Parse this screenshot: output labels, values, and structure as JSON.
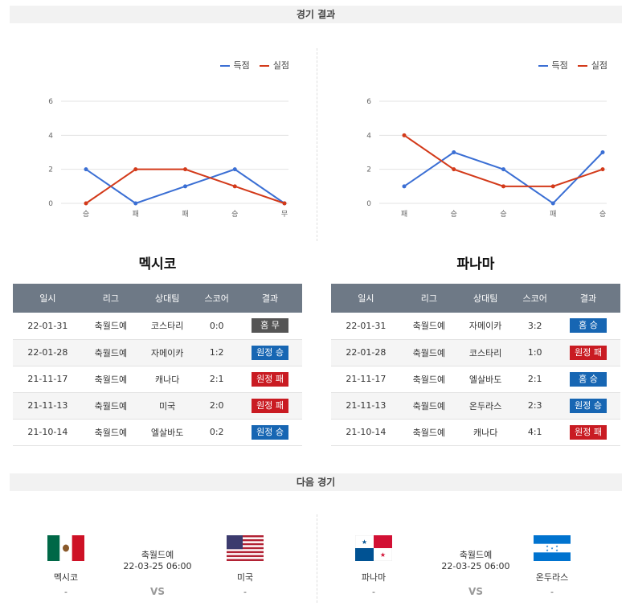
{
  "sections": {
    "results_title": "경기 결과",
    "next_title": "다음 경기"
  },
  "legend": {
    "scored": "득점",
    "conceded": "실점",
    "scored_color": "#3b6fd4",
    "conceded_color": "#d33a1a"
  },
  "chart_data": [
    {
      "type": "line",
      "categories": [
        "승",
        "패",
        "패",
        "승",
        "무"
      ],
      "ylim": [
        0,
        6
      ],
      "yticks": [
        "0",
        "2",
        "4",
        "6"
      ],
      "series": [
        {
          "name": "득점",
          "values": [
            2,
            0,
            1,
            2,
            0
          ]
        },
        {
          "name": "실점",
          "values": [
            0,
            2,
            2,
            1,
            0
          ]
        }
      ]
    },
    {
      "type": "line",
      "categories": [
        "패",
        "승",
        "승",
        "패",
        "승"
      ],
      "ylim": [
        0,
        6
      ],
      "yticks": [
        "0",
        "2",
        "4",
        "6"
      ],
      "series": [
        {
          "name": "득점",
          "values": [
            1,
            3,
            2,
            0,
            3
          ]
        },
        {
          "name": "실점",
          "values": [
            4,
            2,
            1,
            1,
            2
          ]
        }
      ]
    }
  ],
  "headers": [
    "일시",
    "리그",
    "상대팀",
    "스코어",
    "결과"
  ],
  "left": {
    "team": "멕시코",
    "rows": [
      {
        "date": "22-01-31",
        "league": "축월드예",
        "opp": "코스타리",
        "score": "0:0",
        "result": "홈 무",
        "kind": "b-draw"
      },
      {
        "date": "22-01-28",
        "league": "축월드예",
        "opp": "자메이카",
        "score": "1:2",
        "result": "원정 승",
        "kind": "b-away-w"
      },
      {
        "date": "21-11-17",
        "league": "축월드예",
        "opp": "캐나다",
        "score": "2:1",
        "result": "원정 패",
        "kind": "b-away-l"
      },
      {
        "date": "21-11-13",
        "league": "축월드예",
        "opp": "미국",
        "score": "2:0",
        "result": "원정 패",
        "kind": "b-away-l"
      },
      {
        "date": "21-10-14",
        "league": "축월드예",
        "opp": "엘살바도",
        "score": "0:2",
        "result": "원정 승",
        "kind": "b-away-w"
      }
    ]
  },
  "right": {
    "team": "파나마",
    "rows": [
      {
        "date": "22-01-31",
        "league": "축월드예",
        "opp": "자메이카",
        "score": "3:2",
        "result": "홈 승",
        "kind": "b-home-w"
      },
      {
        "date": "22-01-28",
        "league": "축월드예",
        "opp": "코스타리",
        "score": "1:0",
        "result": "원정 패",
        "kind": "b-away-l"
      },
      {
        "date": "21-11-17",
        "league": "축월드예",
        "opp": "엘살바도",
        "score": "2:1",
        "result": "홈 승",
        "kind": "b-home-w"
      },
      {
        "date": "21-11-13",
        "league": "축월드예",
        "opp": "온두라스",
        "score": "2:3",
        "result": "원정 승",
        "kind": "b-away-w"
      },
      {
        "date": "21-10-14",
        "league": "축월드예",
        "opp": "캐나다",
        "score": "4:1",
        "result": "원정 패",
        "kind": "b-away-l"
      }
    ]
  },
  "next": [
    {
      "home": "멕시코",
      "home_flag": "mexico-flag",
      "away": "미국",
      "away_flag": "usa-flag",
      "league": "축월드예",
      "datetime": "22-03-25 06:00",
      "vs": "VS",
      "home_extra": "-",
      "away_extra": "-"
    },
    {
      "home": "파나마",
      "home_flag": "panama-flag",
      "away": "온두라스",
      "away_flag": "honduras-flag",
      "league": "축월드예",
      "datetime": "22-03-25 06:00",
      "vs": "VS",
      "home_extra": "-",
      "away_extra": "-"
    }
  ]
}
